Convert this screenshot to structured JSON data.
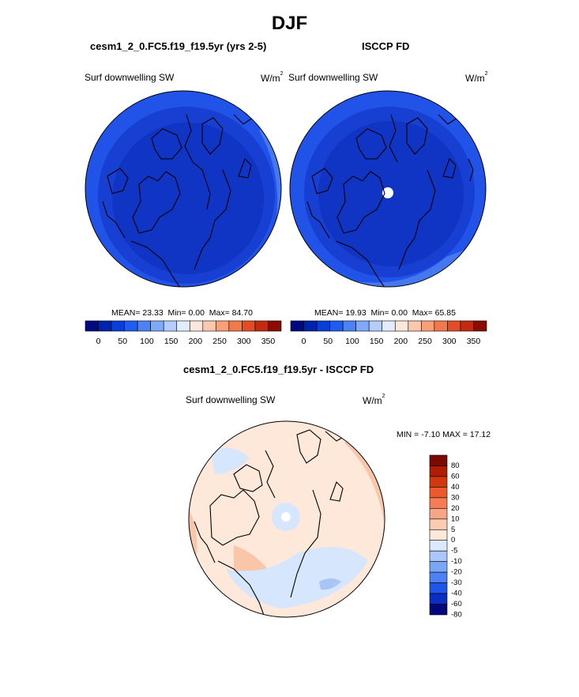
{
  "figure": {
    "season_title": "DJF"
  },
  "panels": {
    "model": {
      "title": "cesm1_2_0.FC5.f19_f19.5yr (yrs 2-5)",
      "left_label": "Surf downwelling SW",
      "units_base": "W/m",
      "units_exp": "2",
      "stats": {
        "mean_label": "MEAN=",
        "mean": "23.33",
        "min_label": "Min=",
        "min": "0.00",
        "max_label": "Max=",
        "max": "84.70"
      }
    },
    "obs": {
      "title": "ISCCP FD",
      "left_label": "Surf downwelling SW",
      "units_base": "W/m",
      "units_exp": "2",
      "stats": {
        "mean_label": "MEAN=",
        "mean": "19.93",
        "min_label": "Min=",
        "min": "0.00",
        "max_label": "Max=",
        "max": "65.85"
      }
    },
    "diff": {
      "title": "cesm1_2_0.FC5.f19_f19.5yr - ISCCP FD",
      "left_label": "Surf downwelling SW",
      "units_base": "W/m",
      "units_exp": "2",
      "stats": {
        "min_label": "MIN =",
        "min": "-7.10",
        "max_label": "MAX =",
        "max": "17.12"
      }
    }
  },
  "colors": {
    "seq_colorbar": [
      "#000a7e",
      "#0022b0",
      "#0a3ed8",
      "#1e5df0",
      "#4c82f5",
      "#7fa8f8",
      "#b4cdfb",
      "#e2ecfd",
      "#fde7db",
      "#fbc7ad",
      "#f8a07a",
      "#f2784e",
      "#e44c28",
      "#c22b10",
      "#8a0d04"
    ],
    "diff_colorbar": [
      "#00087c",
      "#0a2fc0",
      "#1f56ea",
      "#4d82f4",
      "#7aa6f7",
      "#a9c7fa",
      "#dce9fd",
      "#fde8da",
      "#fbcbb2",
      "#f8a586",
      "#f47d55",
      "#ec5a2c",
      "#d2380f",
      "#ad1e04",
      "#7c0a02"
    ],
    "map_outer": "#2253e8",
    "map_mid": "#173fd2",
    "map_inner": "#1034c4",
    "map_edge": "#4577ef",
    "diff_base": "#fde8da",
    "diff_warm": "#f9c6aa",
    "diff_cool": "#d6e6fd",
    "diff_cool2": "#a9c5f8"
  },
  "chart_data": [
    {
      "type": "heatmap",
      "title": "cesm1_2_0.FC5.f19_f19.5yr (yrs 2-5)",
      "variable": "Surf downwelling SW",
      "units": "W/m2",
      "projection": "polar stereographic (North Pole)",
      "colorbar_ticks": [
        "0",
        "50",
        "100",
        "150",
        "200",
        "250",
        "300",
        "350"
      ],
      "colorbar_range": [
        0,
        350
      ],
      "mean": 23.33,
      "min": 0.0,
      "max": 84.7
    },
    {
      "type": "heatmap",
      "title": "ISCCP FD",
      "variable": "Surf downwelling SW",
      "units": "W/m2",
      "projection": "polar stereographic (North Pole)",
      "colorbar_ticks": [
        "0",
        "50",
        "100",
        "150",
        "200",
        "250",
        "300",
        "350"
      ],
      "colorbar_range": [
        0,
        350
      ],
      "mean": 19.93,
      "min": 0.0,
      "max": 65.85
    },
    {
      "type": "heatmap",
      "title": "cesm1_2_0.FC5.f19_f19.5yr - ISCCP FD",
      "variable": "Surf downwelling SW",
      "units": "W/m2",
      "projection": "polar stereographic (North Pole)",
      "colorbar_ticks": [
        "80",
        "60",
        "40",
        "30",
        "20",
        "10",
        "5",
        "0",
        "-5",
        "-10",
        "-20",
        "-30",
        "-40",
        "-60",
        "-80"
      ],
      "min": -7.1,
      "max": 17.12
    }
  ]
}
